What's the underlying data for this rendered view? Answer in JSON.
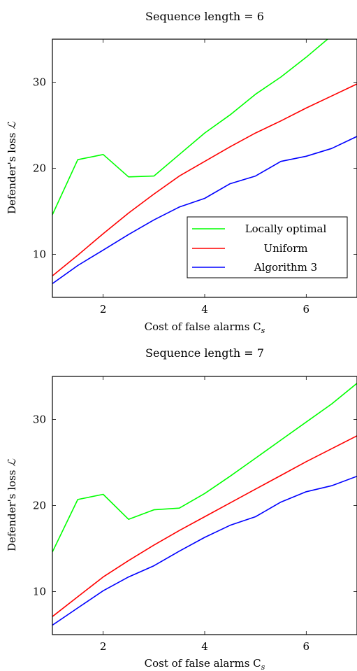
{
  "chart_data": [
    {
      "type": "line",
      "title": "Sequence length = 6",
      "xlabel": "Cost of false alarms C",
      "xlabel_sub": "s",
      "ylabel": "Defender's loss ",
      "ylabel_symbol": "ℒ",
      "xlim": [
        1,
        7
      ],
      "ylim": [
        5,
        35
      ],
      "xticks": [
        2,
        4,
        6
      ],
      "yticks": [
        10,
        20,
        30
      ],
      "grid": false,
      "legend_position": "bottom-right",
      "series": [
        {
          "name": "Locally optimal",
          "color": "#00ff00",
          "x": [
            1,
            1.5,
            2,
            2.5,
            3,
            3.5,
            4,
            4.5,
            5,
            5.5,
            6,
            6.5,
            7
          ],
          "y": [
            14.6,
            21.0,
            21.6,
            19.0,
            19.1,
            21.6,
            24.1,
            26.2,
            28.6,
            30.6,
            32.9,
            35.4,
            37.9
          ]
        },
        {
          "name": "Uniform",
          "color": "#ff0000",
          "x": [
            1,
            1.5,
            2,
            2.5,
            3,
            3.5,
            4,
            4.5,
            5,
            5.5,
            6,
            6.5,
            7
          ],
          "y": [
            7.5,
            9.9,
            12.4,
            14.8,
            17.0,
            19.1,
            20.8,
            22.5,
            24.1,
            25.5,
            27.0,
            28.4,
            29.8
          ]
        },
        {
          "name": "Algorithm 3",
          "color": "#0000ff",
          "x": [
            1,
            1.5,
            2,
            2.5,
            3,
            3.5,
            4,
            4.5,
            5,
            5.5,
            6,
            6.5,
            7
          ],
          "y": [
            6.6,
            8.7,
            10.5,
            12.3,
            14.0,
            15.5,
            16.5,
            18.2,
            19.1,
            20.8,
            21.4,
            22.3,
            23.7
          ]
        }
      ]
    },
    {
      "type": "line",
      "title": "Sequence length = 7",
      "xlabel": "Cost of false alarms C",
      "xlabel_sub": "s",
      "ylabel": "Defender's loss ",
      "ylabel_symbol": "ℒ",
      "xlim": [
        1,
        7
      ],
      "ylim": [
        5,
        35
      ],
      "xticks": [
        2,
        4,
        6
      ],
      "yticks": [
        10,
        20,
        30
      ],
      "grid": false,
      "legend_position": "none",
      "series": [
        {
          "name": "Locally optimal",
          "color": "#00ff00",
          "x": [
            1,
            1.5,
            2,
            2.5,
            3,
            3.5,
            4,
            4.5,
            5,
            5.5,
            6,
            6.5,
            7
          ],
          "y": [
            14.6,
            20.7,
            21.3,
            18.4,
            19.5,
            19.7,
            21.4,
            23.4,
            25.5,
            27.6,
            29.7,
            31.8,
            34.2
          ]
        },
        {
          "name": "Uniform",
          "color": "#ff0000",
          "x": [
            1,
            1.5,
            2,
            2.5,
            3,
            3.5,
            4,
            4.5,
            5,
            5.5,
            6,
            6.5,
            7
          ],
          "y": [
            7.1,
            9.4,
            11.7,
            13.6,
            15.4,
            17.1,
            18.7,
            20.3,
            21.9,
            23.5,
            25.1,
            26.6,
            28.1
          ]
        },
        {
          "name": "Algorithm 3",
          "color": "#0000ff",
          "x": [
            1,
            1.5,
            2,
            2.5,
            3,
            3.5,
            4,
            4.5,
            5,
            5.5,
            6,
            6.5,
            7
          ],
          "y": [
            6.1,
            8.1,
            10.1,
            11.7,
            13.0,
            14.7,
            16.3,
            17.7,
            18.7,
            20.4,
            21.6,
            22.3,
            23.4
          ]
        }
      ]
    }
  ]
}
